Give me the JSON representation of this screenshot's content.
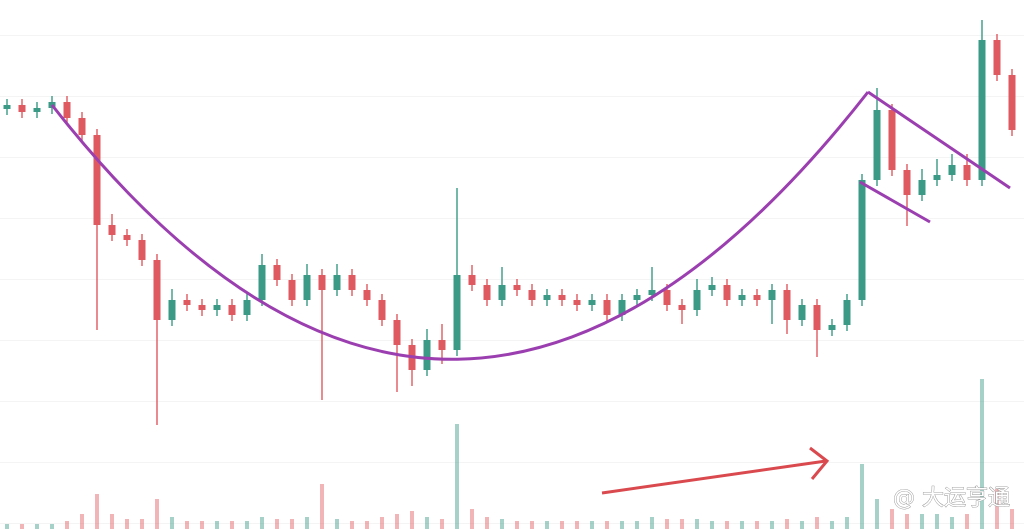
{
  "chart_data": {
    "type": "candlestick",
    "ylim": [
      0,
      529
    ],
    "up_color": "#3a9a85",
    "down_color": "#df5a60",
    "open": [
      420,
      424,
      417,
      421,
      427,
      411,
      394,
      304,
      294,
      289,
      269,
      209,
      229,
      224,
      219,
      224,
      214,
      229,
      264,
      249,
      229,
      254,
      239,
      254,
      239,
      229,
      209,
      184,
      159,
      189,
      179,
      254,
      244,
      229,
      244,
      239,
      229,
      234,
      229,
      224,
      229,
      214,
      229,
      234,
      239,
      224,
      219,
      239,
      244,
      229,
      234,
      229,
      239,
      209,
      224,
      199,
      204,
      229,
      349,
      419,
      359,
      334,
      349,
      354,
      364,
      349,
      489,
      454
    ],
    "high": [
      430,
      430,
      427,
      433,
      433,
      417,
      400,
      315,
      300,
      295,
      275,
      240,
      235,
      230,
      230,
      230,
      235,
      275,
      270,
      255,
      265,
      260,
      265,
      260,
      245,
      235,
      215,
      190,
      200,
      205,
      341,
      264,
      250,
      262,
      250,
      245,
      240,
      240,
      235,
      235,
      235,
      235,
      240,
      262,
      245,
      230,
      250,
      252,
      250,
      240,
      240,
      245,
      245,
      230,
      230,
      210,
      235,
      355,
      441,
      425,
      365,
      360,
      370,
      375,
      375,
      509,
      495,
      460
    ],
    "low": [
      414,
      411,
      411,
      415,
      405,
      388,
      199,
      288,
      283,
      263,
      104,
      203,
      218,
      213,
      213,
      208,
      208,
      223,
      243,
      223,
      223,
      129,
      233,
      233,
      223,
      203,
      137,
      143,
      153,
      165,
      173,
      238,
      223,
      223,
      233,
      223,
      223,
      223,
      218,
      218,
      208,
      208,
      223,
      228,
      218,
      205,
      213,
      233,
      223,
      223,
      223,
      205,
      195,
      203,
      172,
      193,
      198,
      223,
      343,
      353,
      303,
      328,
      343,
      348,
      343,
      343,
      448,
      393
    ],
    "close": [
      424,
      417,
      421,
      427,
      411,
      394,
      304,
      294,
      289,
      269,
      209,
      229,
      224,
      219,
      224,
      214,
      229,
      264,
      249,
      229,
      254,
      239,
      254,
      239,
      229,
      209,
      184,
      159,
      189,
      179,
      254,
      244,
      229,
      244,
      239,
      229,
      234,
      229,
      224,
      229,
      214,
      229,
      234,
      239,
      224,
      219,
      239,
      244,
      229,
      234,
      229,
      239,
      209,
      224,
      199,
      204,
      229,
      349,
      419,
      359,
      334,
      349,
      354,
      364,
      349,
      489,
      454,
      399
    ],
    "volume": [
      5,
      5,
      5,
      5,
      8,
      15,
      35,
      15,
      10,
      10,
      30,
      12,
      8,
      8,
      8,
      8,
      8,
      12,
      10,
      10,
      12,
      45,
      10,
      8,
      8,
      12,
      15,
      18,
      12,
      10,
      105,
      20,
      12,
      10,
      8,
      8,
      8,
      8,
      8,
      8,
      8,
      8,
      8,
      12,
      10,
      10,
      10,
      8,
      8,
      8,
      8,
      8,
      10,
      8,
      12,
      8,
      12,
      65,
      30,
      20,
      15,
      15,
      15,
      12,
      15,
      150,
      40,
      20
    ],
    "watermark": "@ 大运亨通"
  }
}
